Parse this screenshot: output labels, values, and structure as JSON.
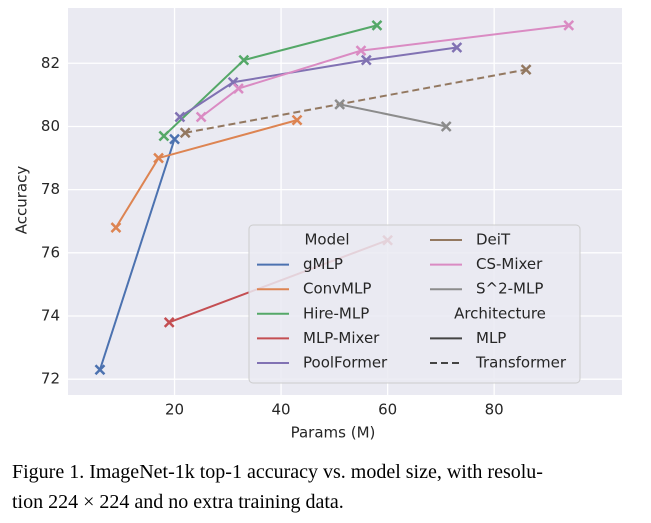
{
  "chart_data": {
    "type": "line",
    "x_label": "Params (M)",
    "y_label": "Accuracy",
    "xlim": [
      0,
      104
    ],
    "ylim": [
      71.5,
      83.75
    ],
    "xticks": [
      20,
      40,
      60,
      80
    ],
    "yticks": [
      72,
      74,
      76,
      78,
      80,
      82
    ],
    "grid": true,
    "legend": "lower right",
    "legend_title": "Model",
    "style_title": "Architecture",
    "styles": [
      {
        "name": "MLP",
        "dash": "solid"
      },
      {
        "name": "Transformer",
        "dash": "dashed"
      }
    ],
    "series": [
      {
        "name": "gMLP",
        "color": "#4c72b0",
        "style": "MLP",
        "x": [
          6,
          20
        ],
        "values": [
          72.3,
          79.6
        ]
      },
      {
        "name": "ConvMLP",
        "color": "#dd8452",
        "style": "MLP",
        "x": [
          9,
          17,
          43
        ],
        "values": [
          76.8,
          79.0,
          80.2
        ]
      },
      {
        "name": "Hire-MLP",
        "color": "#55a868",
        "style": "MLP",
        "x": [
          18,
          33,
          58
        ],
        "values": [
          79.7,
          82.1,
          83.2
        ]
      },
      {
        "name": "MLP-Mixer",
        "color": "#c44e52",
        "style": "MLP",
        "x": [
          19,
          60
        ],
        "values": [
          73.8,
          76.4
        ]
      },
      {
        "name": "PoolFormer",
        "color": "#8172b3",
        "style": "MLP",
        "x": [
          21,
          31,
          56,
          73
        ],
        "values": [
          80.3,
          81.4,
          82.1,
          82.5
        ]
      },
      {
        "name": "DeiT",
        "color": "#937860",
        "style": "Transformer",
        "x": [
          22,
          86
        ],
        "values": [
          79.8,
          81.8
        ]
      },
      {
        "name": "CS-Mixer",
        "color": "#da8bc3",
        "style": "MLP",
        "x": [
          25,
          32,
          55,
          94
        ],
        "values": [
          80.3,
          81.2,
          82.4,
          83.2
        ]
      },
      {
        "name": "S^2-MLP",
        "color": "#8c8c8c",
        "style": "MLP",
        "x": [
          51,
          71
        ],
        "values": [
          80.7,
          80.0
        ]
      }
    ]
  },
  "caption": [
    "Figure 1. ImageNet-1k top-1 accuracy vs. model size, with resolu-",
    "tion 224 × 224 and no extra training data."
  ]
}
